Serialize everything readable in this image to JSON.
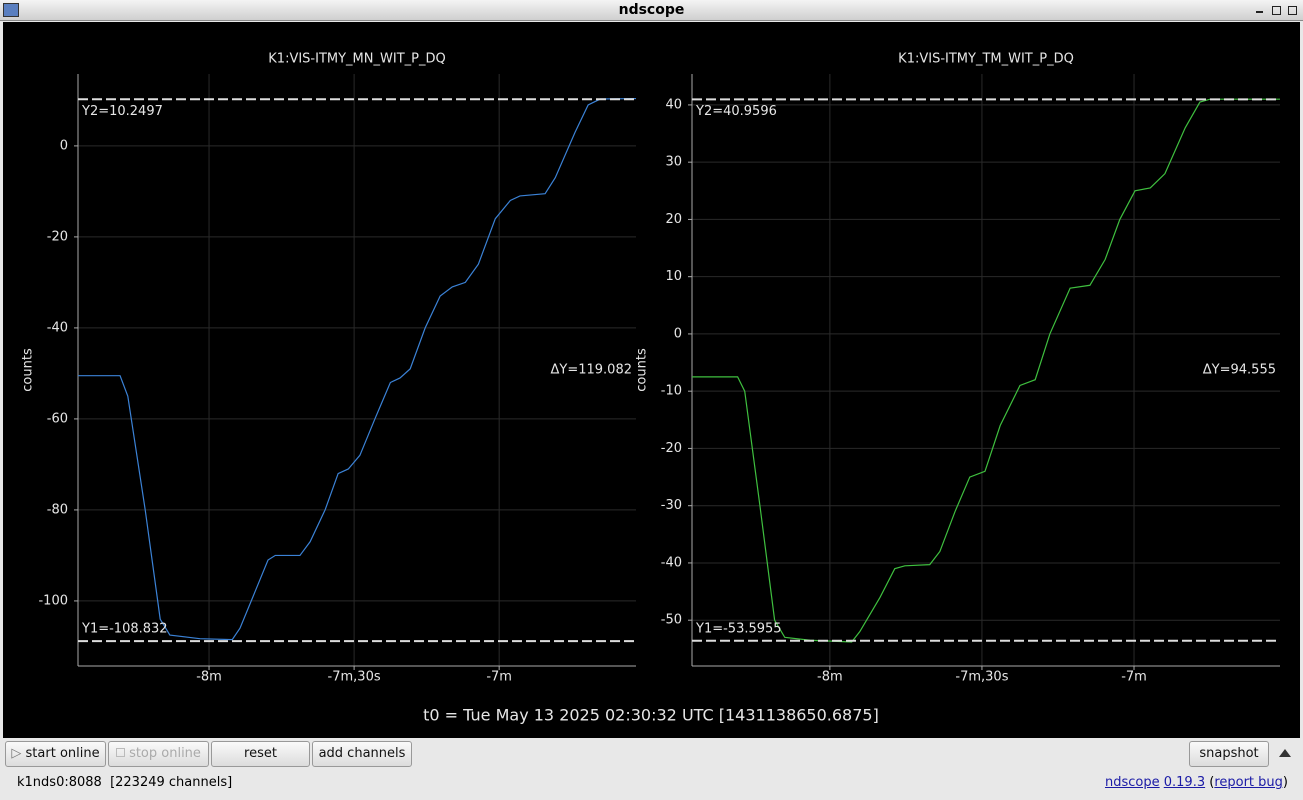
{
  "window_title": "ndscope",
  "chart_data": [
    {
      "type": "line",
      "title": "K1:VIS-ITMY_MN_WIT_P_DQ",
      "y_label": "counts",
      "x": [
        -507.1,
        -498.4,
        -496.8,
        -493.2,
        -490.1,
        -488.1,
        -481.9,
        -475.2,
        -473.6,
        -470.5,
        -467.8,
        -466.3,
        -461.2,
        -459.1,
        -456,
        -453.3,
        -451.2,
        -448.8,
        -445.7,
        -442.5,
        -440.5,
        -438.4,
        -435.3,
        -432.2,
        -429.7,
        -427,
        -424.3,
        -420.8,
        -417.7,
        -415.7,
        -410.5,
        -408.4,
        -404.3,
        -401.6,
        -399.1,
        -391.7
      ],
      "series": [
        {
          "color": "#3b82d6",
          "values": [
            -50.5,
            -50.5,
            -55,
            -80,
            -104,
            -107.5,
            -108.3,
            -108.5,
            -106,
            -98,
            -91,
            -90,
            -90,
            -87,
            -80,
            -72,
            -71,
            -68,
            -60,
            -52,
            -51,
            -49,
            -40,
            -33,
            -31,
            -30,
            -26,
            -16,
            -12,
            -11,
            -10.5,
            -7,
            3,
            9,
            10.3,
            10.4
          ]
        }
      ],
      "xlim": [
        -507.1,
        -391.7
      ],
      "ylim": [
        -114.3,
        15.8
      ],
      "xticks": [
        {
          "value": -480,
          "label": "-8m"
        },
        {
          "value": -450,
          "label": "-7m,30s"
        },
        {
          "value": -420,
          "label": "-7m"
        }
      ],
      "yticks": [
        0,
        -20,
        -40,
        -60,
        -80,
        -100
      ],
      "grid": true,
      "cursors": [
        {
          "value": 10.2497,
          "label": "Y2=10.2497"
        },
        {
          "value": -108.832,
          "label": "Y1=-108.832"
        }
      ],
      "delta_label": "ΔY=119.082"
    },
    {
      "type": "line",
      "title": "K1:VIS-ITMY_TM_WIT_P_DQ",
      "y_label": "counts",
      "x": [
        -507.2,
        -498.2,
        -496.8,
        -493.8,
        -490.9,
        -488.9,
        -483.9,
        -475.7,
        -474.1,
        -470.1,
        -467.2,
        -465.2,
        -460.3,
        -458.3,
        -455.3,
        -452.4,
        -449.4,
        -446.4,
        -442.5,
        -439.5,
        -436.6,
        -432.6,
        -428.7,
        -425.7,
        -422.8,
        -419.8,
        -416.8,
        -413.9,
        -409.9,
        -407,
        -405,
        -391.2
      ],
      "series": [
        {
          "color": "#3fbf3f",
          "values": [
            -7.5,
            -7.5,
            -10,
            -30,
            -50,
            -53,
            -53.5,
            -53.8,
            -52,
            -46,
            -41,
            -40.5,
            -40.3,
            -38,
            -31,
            -25,
            -24,
            -16,
            -9,
            -8,
            0,
            8,
            8.5,
            13,
            20,
            25,
            25.5,
            28,
            36,
            40.5,
            41,
            41
          ]
        }
      ],
      "xlim": [
        -507.2,
        -391.2
      ],
      "ylim": [
        -58,
        45.4
      ],
      "xticks": [
        {
          "value": -480,
          "label": "-8m"
        },
        {
          "value": -450,
          "label": "-7m,30s"
        },
        {
          "value": -420,
          "label": "-7m"
        }
      ],
      "yticks": [
        40,
        30,
        20,
        10,
        0,
        -10,
        -20,
        -30,
        -40,
        -50
      ],
      "grid": true,
      "cursors": [
        {
          "value": 40.9596,
          "label": "Y2=40.9596"
        },
        {
          "value": -53.5955,
          "label": "Y1=-53.5955"
        }
      ],
      "delta_label": "ΔY=94.555"
    }
  ],
  "t0_label": "t0 = Tue May 13 2025 02:30:32 UTC [1431138650.6875]",
  "buttons": [
    "start online",
    "stop online",
    "reset",
    "add channels",
    "snapshot"
  ],
  "status": "k1nds0:8088  [223249 channels]",
  "about": [
    "ndscope",
    "0.19.3",
    "(",
    "report bug",
    ")"
  ]
}
